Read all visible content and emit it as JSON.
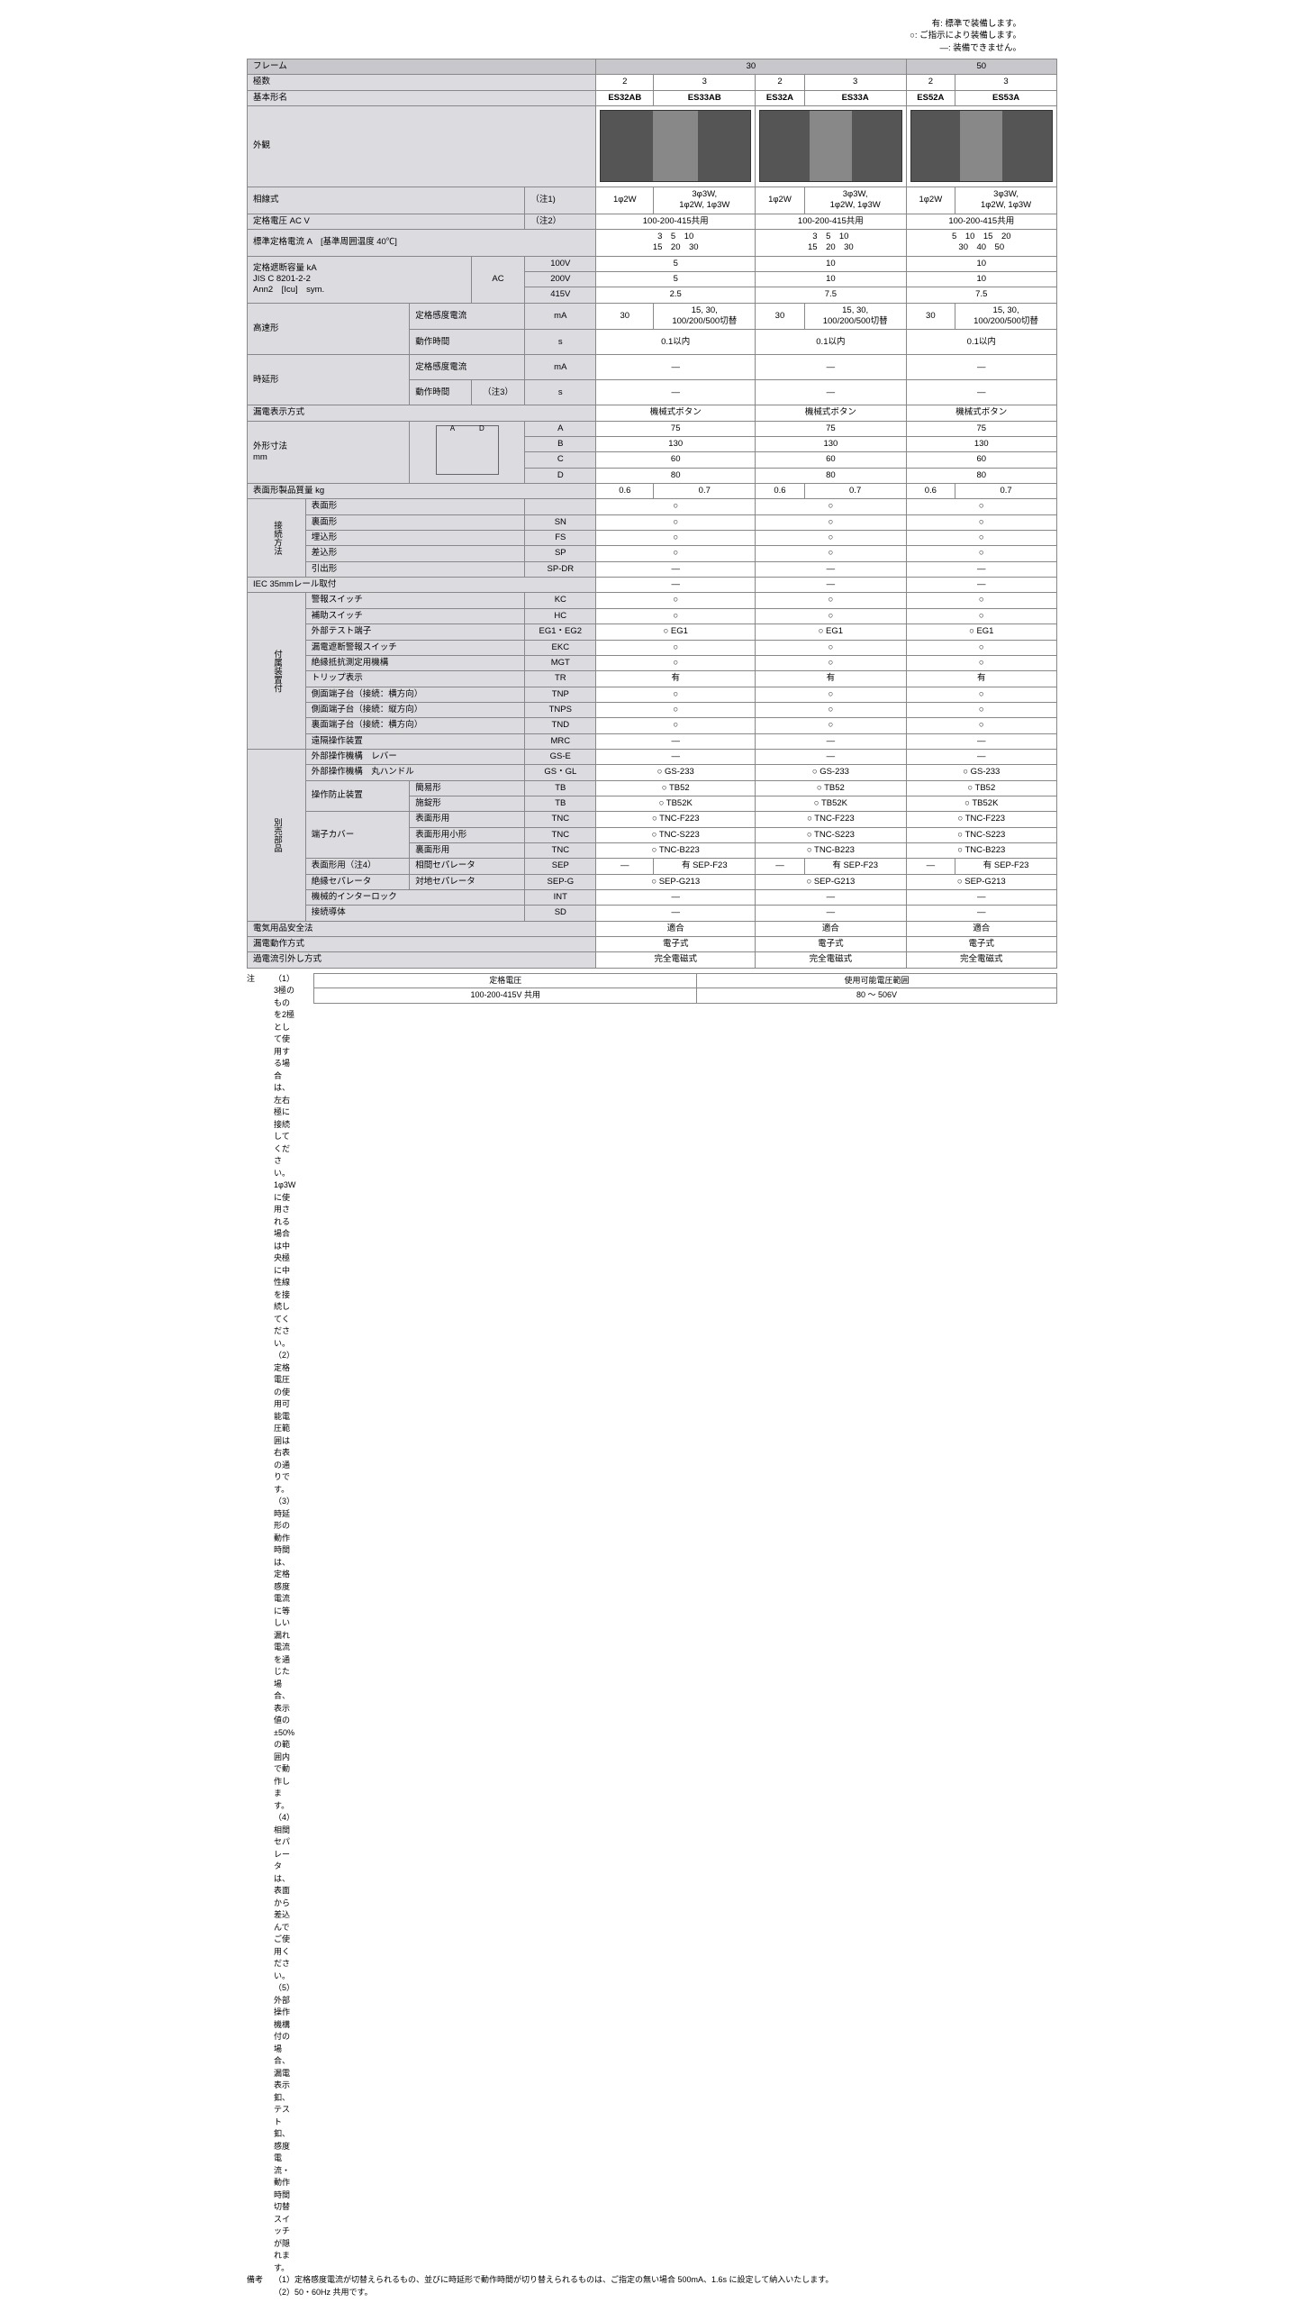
{
  "legend": {
    "lines": [
      "有: 標準で装備します。",
      "○: ご指示により装備します。",
      "―: 装備できません。"
    ]
  },
  "headers": {
    "frame": "フレーム",
    "frame_30": "30",
    "frame_50": "50",
    "poles": "極数",
    "poles_vals": [
      "2",
      "3",
      "2",
      "3",
      "2",
      "3"
    ],
    "model": "基本形名",
    "models": [
      "ES32AB",
      "ES33AB",
      "ES32A",
      "ES33A",
      "ES52A",
      "ES53A"
    ],
    "appearance": "外観",
    "wire": "相線式",
    "wire_note": "（注1)",
    "wire_vals": [
      "1φ2W",
      "3φ3W,\n1φ2W, 1φ3W",
      "1φ2W",
      "3φ3W,\n1φ2W, 1φ3W",
      "1φ2W",
      "3φ3W,\n1φ2W, 1φ3W"
    ],
    "voltage": "定格電圧 AC V",
    "voltage_note": "（注2）",
    "voltage_vals": [
      "100-200-415共用",
      "100-200-415共用",
      "100-200-415共用"
    ],
    "current": "標準定格電流 A　[基準周囲温度 40℃]",
    "current_vals": [
      "3　5　10\n15　20　30",
      "3　5　10\n15　20　30",
      "5　10　15　20\n30　40　50"
    ],
    "breaking": "定格遮断容量 kA\nJIS C 8201-2-2\nAnn2　[Icu]　sym.",
    "breaking_ac": "AC",
    "breaking_rows": [
      {
        "v": "100V",
        "vals": [
          "5",
          "10",
          "10"
        ]
      },
      {
        "v": "200V",
        "vals": [
          "5",
          "10",
          "10"
        ]
      },
      {
        "v": "415V",
        "vals": [
          "2.5",
          "7.5",
          "7.5"
        ]
      }
    ],
    "hspeed": "高速形",
    "sens_curr": "定格感度電流",
    "sens_unit": "mA",
    "sens_vals": [
      {
        "l": "30",
        "r": "15, 30,\n100/200/500切替"
      },
      {
        "l": "30",
        "r": "15, 30,\n100/200/500切替"
      },
      {
        "l": "30",
        "r": "15, 30,\n100/200/500切替"
      }
    ],
    "op_time": "動作時間",
    "op_unit": "s",
    "op_vals": [
      "0.1以内",
      "0.1以内",
      "0.1以内"
    ],
    "delay": "時延形",
    "delay_sens": [
      "―",
      "―",
      "―"
    ],
    "delay_time_note": "（注3）",
    "delay_time": [
      "―",
      "―",
      "―"
    ],
    "leak_disp": "漏電表示方式",
    "leak_disp_vals": [
      "機械式ボタン",
      "機械式ボタン",
      "機械式ボタン"
    ],
    "dims": "外形寸法\nmm",
    "dim_rows": [
      {
        "d": "A",
        "vals": [
          "75",
          "75",
          "75"
        ]
      },
      {
        "d": "B",
        "vals": [
          "130",
          "130",
          "130"
        ]
      },
      {
        "d": "C",
        "vals": [
          "60",
          "60",
          "60"
        ]
      },
      {
        "d": "D",
        "vals": [
          "80",
          "80",
          "80"
        ]
      }
    ],
    "mass": "表面形製品質量 kg",
    "mass_vals": [
      "0.6",
      "0.7",
      "0.6",
      "0.7",
      "0.6",
      "0.7"
    ],
    "conn": "接続方法",
    "conn_rows": [
      {
        "n": "表面形",
        "c": "",
        "vals": [
          "○",
          "○",
          "○"
        ]
      },
      {
        "n": "裏面形",
        "c": "SN",
        "vals": [
          "○",
          "○",
          "○"
        ]
      },
      {
        "n": "埋込形",
        "c": "FS",
        "vals": [
          "○",
          "○",
          "○"
        ]
      },
      {
        "n": "差込形",
        "c": "SP",
        "vals": [
          "○",
          "○",
          "○"
        ]
      },
      {
        "n": "引出形",
        "c": "SP-DR",
        "vals": [
          "―",
          "―",
          "―"
        ]
      }
    ],
    "iec": "IEC 35mmレール取付",
    "iec_vals": [
      "―",
      "―",
      "―"
    ],
    "attach": "付属装置付",
    "attach_rows": [
      {
        "n": "警報スイッチ",
        "c": "KC",
        "vals": [
          "○",
          "○",
          "○"
        ]
      },
      {
        "n": "補助スイッチ",
        "c": "HC",
        "vals": [
          "○",
          "○",
          "○"
        ]
      },
      {
        "n": "外部テスト端子",
        "c": "EG1・EG2",
        "vals": [
          "○ EG1",
          "○ EG1",
          "○ EG1"
        ]
      },
      {
        "n": "漏電遮断警報スイッチ",
        "c": "EKC",
        "vals": [
          "○",
          "○",
          "○"
        ]
      },
      {
        "n": "絶縁抵抗測定用機構",
        "c": "MGT",
        "vals": [
          "○",
          "○",
          "○"
        ]
      },
      {
        "n": "トリップ表示",
        "c": "TR",
        "vals": [
          "有",
          "有",
          "有"
        ]
      },
      {
        "n": "側面端子台（接続：横方向）",
        "c": "TNP",
        "vals": [
          "○",
          "○",
          "○"
        ]
      },
      {
        "n": "側面端子台（接続：縦方向）",
        "c": "TNPS",
        "vals": [
          "○",
          "○",
          "○"
        ]
      },
      {
        "n": "裏面端子台（接続：横方向）",
        "c": "TND",
        "vals": [
          "○",
          "○",
          "○"
        ]
      },
      {
        "n": "遠隔操作装置",
        "c": "MRC",
        "vals": [
          "―",
          "―",
          "―"
        ]
      }
    ],
    "option": "別売部品",
    "opt_rows": [
      {
        "n": "外部操作機構　レバー",
        "c": "GS-E",
        "vals": [
          "―",
          "―",
          "―"
        ]
      },
      {
        "n": "外部操作機構　丸ハンドル",
        "c": "GS・GL",
        "vals": [
          "○ GS-233",
          "○ GS-233",
          "○ GS-233"
        ]
      }
    ],
    "oplock": "操作防止装置",
    "oplock_rows": [
      {
        "n": "簡易形",
        "c": "TB",
        "vals": [
          "○ TB52",
          "○ TB52",
          "○ TB52"
        ]
      },
      {
        "n": "施錠形",
        "c": "TB",
        "vals": [
          "○ TB52K",
          "○ TB52K",
          "○ TB52K"
        ]
      }
    ],
    "tcover": "端子カバー",
    "tcover_rows": [
      {
        "n": "表面形用",
        "c": "TNC",
        "vals": [
          "○ TNC-F223",
          "○ TNC-F223",
          "○ TNC-F223"
        ]
      },
      {
        "n": "表面形用小形",
        "c": "TNC",
        "vals": [
          "○ TNC-S223",
          "○ TNC-S223",
          "○ TNC-S223"
        ]
      },
      {
        "n": "裏面形用",
        "c": "TNC",
        "vals": [
          "○ TNC-B223",
          "○ TNC-B223",
          "○ TNC-B223"
        ]
      }
    ],
    "sep": "表面形用（注4）",
    "sep_rows": [
      {
        "n": "相間セパレータ",
        "c": "SEP",
        "vals_split": [
          "―",
          "有 SEP-F23",
          "―",
          "有 SEP-F23",
          "―",
          "有 SEP-F23"
        ]
      }
    ],
    "insul_sep": "絶縁セパレータ",
    "insul_rows": [
      {
        "n": "対地セパレータ",
        "c": "SEP-G",
        "vals": [
          "○ SEP-G213",
          "○ SEP-G213",
          "○ SEP-G213"
        ]
      }
    ],
    "interlock": "機械的インターロック",
    "interlock_c": "INT",
    "interlock_vals": [
      "―",
      "―",
      "―"
    ],
    "conductor": "接続導体",
    "conductor_c": "SD",
    "conductor_vals": [
      "―",
      "―",
      "―"
    ],
    "safety": "電気用品安全法",
    "safety_vals": [
      "適合",
      "適合",
      "適合"
    ],
    "leak_method": "漏電動作方式",
    "leak_method_vals": [
      "電子式",
      "電子式",
      "電子式"
    ],
    "overcurrent": "過電流引外し方式",
    "overcurrent_vals": [
      "完全電磁式",
      "完全電磁式",
      "完全電磁式"
    ]
  },
  "notes": {
    "label": "注",
    "items": [
      "（1）3極のものを2極として使用する場合は、左右極に接続してください。1φ3W に使用される場合は中央極に中性線を接続してください。",
      "（2）定格電圧の使用可能電圧範囲は右表の通りです。",
      "（3）時延形の動作時間は、定格感度電流に等しい漏れ電流を通じた場合、表示値の±50%の範囲内で動作します。",
      "（4）相間セパレータは、表面から差込んでご使用ください。",
      "（5）外部操作機構付の場合、漏電表示釦、テスト釦、感度電流・動作時間切替スイッチが隠れます。"
    ],
    "remarks_label": "備考",
    "remarks": [
      "（1）定格感度電流が切替えられるもの、並びに時延形で動作時間が切り替えられるものは、ご指定の無い場合 500mA、1.6s に設定して納入いたします。",
      "（2）50・60Hz 共用です。"
    ]
  },
  "volt_table": {
    "h1": "定格電圧",
    "h2": "使用可能電圧範囲",
    "r1": "100-200-415V 共用",
    "r2": "80 ～ 506V"
  },
  "colors": {
    "header_bg": "#c8c8cc",
    "label_bg": "#dcdce0",
    "border": "#888888"
  }
}
